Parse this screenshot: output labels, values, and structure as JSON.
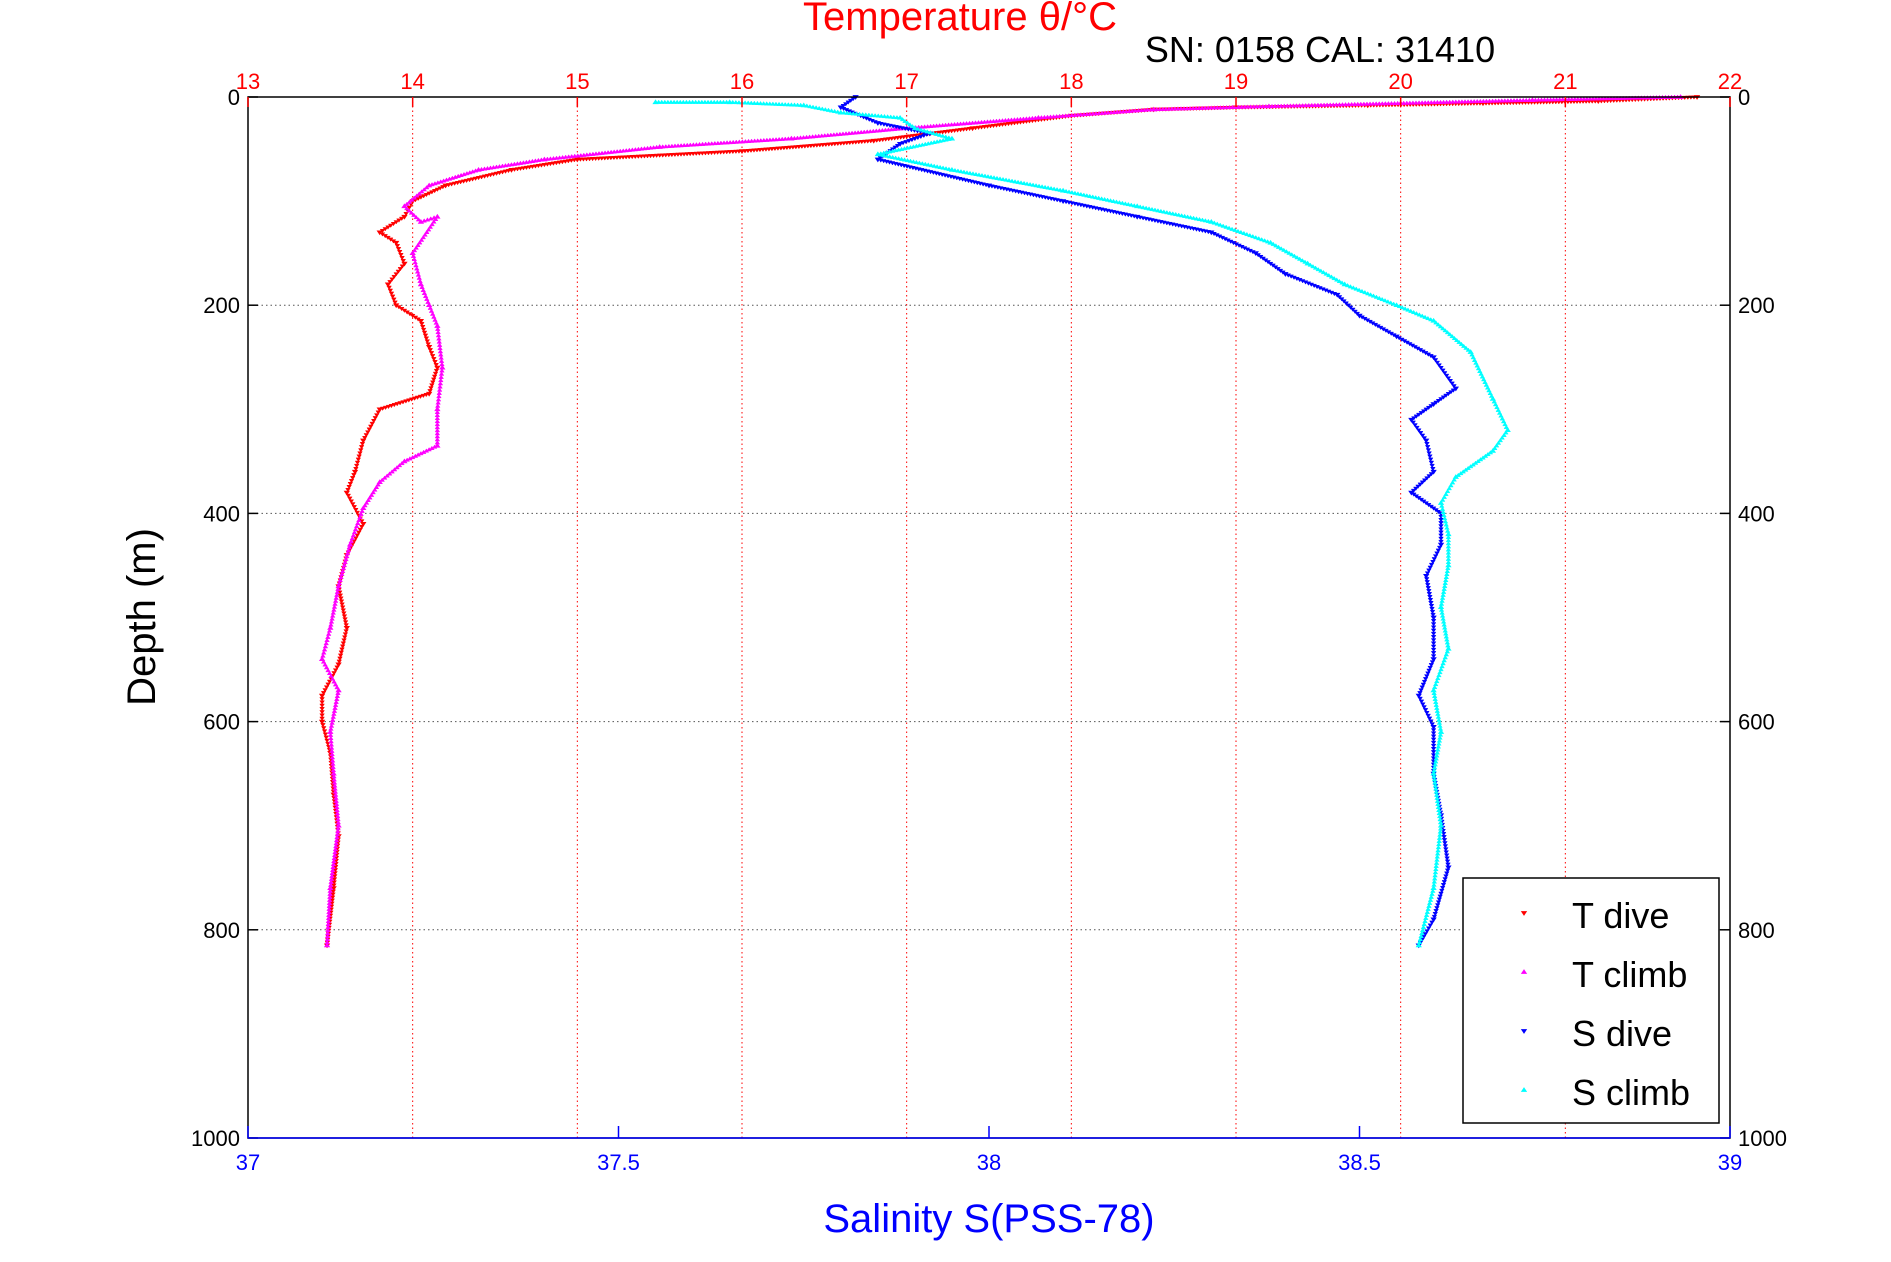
{
  "chart_data": {
    "type": "scatter",
    "title": "Temperature θ/°C",
    "subtitle": "SN: 0158  CAL: 31410",
    "xlabel_bottom": "Salinity S(PSS-78)",
    "ylabel": "Depth (m)",
    "y_axis": {
      "range": [
        0,
        1000
      ],
      "reversed": true,
      "ticks": [
        0,
        200,
        400,
        600,
        800,
        1000
      ]
    },
    "x_top": {
      "range": [
        13,
        22
      ],
      "ticks": [
        13,
        14,
        15,
        16,
        17,
        18,
        19,
        20,
        21,
        22
      ]
    },
    "x_bottom": {
      "range": [
        37,
        39
      ],
      "ticks": [
        37,
        37.5,
        38,
        38.5,
        39
      ]
    },
    "grid": true,
    "legend": {
      "placement": "bottom-right"
    },
    "colors": {
      "temperature_axis": "#ff0000",
      "salinity_axis": "#0000ff"
    },
    "series": [
      {
        "name": "T dive",
        "axis": "top",
        "marker": "triangle-down",
        "color": "#ff0000",
        "points": [
          [
            21.8,
            0
          ],
          [
            21.2,
            4
          ],
          [
            20.5,
            6
          ],
          [
            19.8,
            8
          ],
          [
            19.0,
            10
          ],
          [
            18.5,
            12
          ],
          [
            18.0,
            18
          ],
          [
            17.4,
            30
          ],
          [
            16.8,
            42
          ],
          [
            16.0,
            52
          ],
          [
            15.0,
            60
          ],
          [
            14.6,
            70
          ],
          [
            14.2,
            85
          ],
          [
            14.0,
            100
          ],
          [
            13.95,
            115
          ],
          [
            13.8,
            130
          ],
          [
            13.9,
            140
          ],
          [
            13.95,
            160
          ],
          [
            13.85,
            180
          ],
          [
            13.9,
            200
          ],
          [
            14.05,
            215
          ],
          [
            14.1,
            240
          ],
          [
            14.15,
            260
          ],
          [
            14.1,
            285
          ],
          [
            13.8,
            300
          ],
          [
            13.7,
            330
          ],
          [
            13.65,
            360
          ],
          [
            13.6,
            380
          ],
          [
            13.7,
            410
          ],
          [
            13.6,
            440
          ],
          [
            13.55,
            470
          ],
          [
            13.6,
            510
          ],
          [
            13.55,
            545
          ],
          [
            13.45,
            575
          ],
          [
            13.45,
            600
          ],
          [
            13.5,
            630
          ],
          [
            13.52,
            670
          ],
          [
            13.55,
            710
          ],
          [
            13.52,
            760
          ],
          [
            13.48,
            815
          ]
        ]
      },
      {
        "name": "T climb",
        "axis": "top",
        "marker": "triangle-up",
        "color": "#ff00ff",
        "points": [
          [
            21.7,
            0
          ],
          [
            20.8,
            3
          ],
          [
            20.0,
            6
          ],
          [
            19.2,
            9
          ],
          [
            18.5,
            12
          ],
          [
            17.8,
            20
          ],
          [
            17.0,
            30
          ],
          [
            16.3,
            40
          ],
          [
            15.5,
            48
          ],
          [
            14.8,
            60
          ],
          [
            14.4,
            70
          ],
          [
            14.1,
            85
          ],
          [
            13.95,
            105
          ],
          [
            14.05,
            120
          ],
          [
            14.15,
            115
          ],
          [
            14.0,
            150
          ],
          [
            14.05,
            180
          ],
          [
            14.1,
            200
          ],
          [
            14.15,
            220
          ],
          [
            14.18,
            260
          ],
          [
            14.15,
            300
          ],
          [
            14.15,
            335
          ],
          [
            13.95,
            350
          ],
          [
            13.8,
            370
          ],
          [
            13.7,
            395
          ],
          [
            13.62,
            430
          ],
          [
            13.55,
            470
          ],
          [
            13.5,
            510
          ],
          [
            13.45,
            540
          ],
          [
            13.55,
            570
          ],
          [
            13.5,
            610
          ],
          [
            13.52,
            650
          ],
          [
            13.55,
            700
          ],
          [
            13.5,
            760
          ],
          [
            13.48,
            815
          ]
        ]
      },
      {
        "name": "S dive",
        "axis": "bottom",
        "marker": "triangle-down",
        "color": "#0000ff",
        "points": [
          [
            37.82,
            0
          ],
          [
            37.8,
            10
          ],
          [
            37.85,
            25
          ],
          [
            37.92,
            35
          ],
          [
            37.88,
            45
          ],
          [
            37.85,
            60
          ],
          [
            38.0,
            85
          ],
          [
            38.1,
            100
          ],
          [
            38.2,
            115
          ],
          [
            38.3,
            130
          ],
          [
            38.36,
            150
          ],
          [
            38.4,
            170
          ],
          [
            38.47,
            190
          ],
          [
            38.5,
            210
          ],
          [
            38.55,
            230
          ],
          [
            38.6,
            250
          ],
          [
            38.63,
            280
          ],
          [
            38.6,
            295
          ],
          [
            38.57,
            310
          ],
          [
            38.59,
            330
          ],
          [
            38.6,
            360
          ],
          [
            38.57,
            380
          ],
          [
            38.61,
            400
          ],
          [
            38.61,
            430
          ],
          [
            38.59,
            460
          ],
          [
            38.6,
            500
          ],
          [
            38.6,
            540
          ],
          [
            38.58,
            575
          ],
          [
            38.6,
            605
          ],
          [
            38.6,
            650
          ],
          [
            38.61,
            690
          ],
          [
            38.62,
            740
          ],
          [
            38.6,
            790
          ],
          [
            38.58,
            815
          ]
        ]
      },
      {
        "name": "S climb",
        "axis": "bottom",
        "marker": "triangle-up",
        "color": "#00ffff",
        "points": [
          [
            37.55,
            5
          ],
          [
            37.65,
            5
          ],
          [
            37.75,
            8
          ],
          [
            37.8,
            15
          ],
          [
            37.88,
            20
          ],
          [
            37.9,
            30
          ],
          [
            37.95,
            40
          ],
          [
            37.85,
            55
          ],
          [
            37.95,
            70
          ],
          [
            38.1,
            90
          ],
          [
            38.2,
            105
          ],
          [
            38.3,
            120
          ],
          [
            38.38,
            140
          ],
          [
            38.43,
            160
          ],
          [
            38.48,
            180
          ],
          [
            38.55,
            200
          ],
          [
            38.6,
            215
          ],
          [
            38.65,
            245
          ],
          [
            38.68,
            290
          ],
          [
            38.7,
            320
          ],
          [
            38.68,
            340
          ],
          [
            38.63,
            365
          ],
          [
            38.61,
            390
          ],
          [
            38.62,
            420
          ],
          [
            38.62,
            450
          ],
          [
            38.61,
            490
          ],
          [
            38.62,
            530
          ],
          [
            38.6,
            570
          ],
          [
            38.61,
            610
          ],
          [
            38.6,
            650
          ],
          [
            38.61,
            700
          ],
          [
            38.6,
            760
          ],
          [
            38.58,
            815
          ]
        ]
      }
    ]
  }
}
